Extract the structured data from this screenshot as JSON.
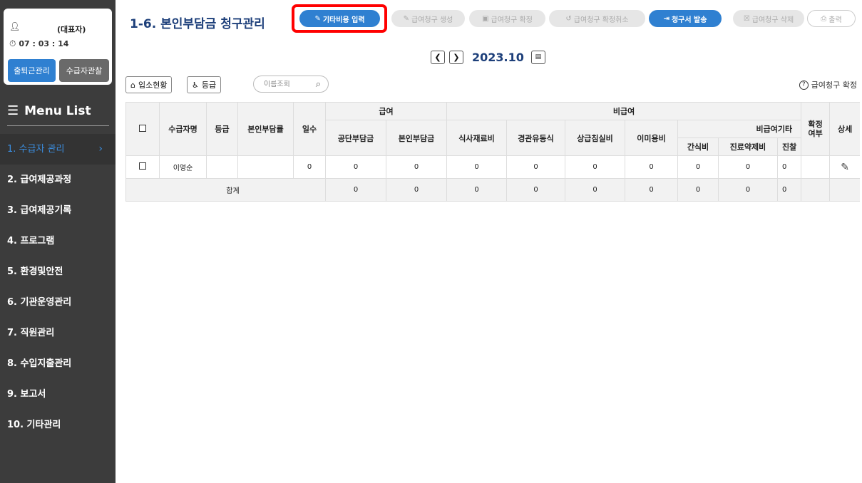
{
  "sidebar": {
    "user": {
      "role": "(대표자)",
      "time": "07 : 03 : 14"
    },
    "buttons": {
      "attendance": "출퇴근관리",
      "observation": "수급자관찰"
    },
    "menu_title": "Menu List",
    "items": [
      {
        "label": "1. 수급자 관리"
      },
      {
        "label": "2. 급여제공과정"
      },
      {
        "label": "3. 급여제공기록"
      },
      {
        "label": "4. 프로그램"
      },
      {
        "label": "5. 환경및안전"
      },
      {
        "label": "6. 기관운영관리"
      },
      {
        "label": "7. 직원관리"
      },
      {
        "label": "8. 수입지출관리"
      },
      {
        "label": "9. 보고서"
      },
      {
        "label": "10. 기타관리"
      }
    ]
  },
  "header": {
    "title": "1-6. 본인부담금 청구관리",
    "toolbar": {
      "other_cost": "기타비용 입력",
      "create": "급여청구 생성",
      "confirm": "급여청구 확정",
      "cancel_confirm": "급여청구 확정취소",
      "issue": "청구서 발송",
      "delete": "급여청구 삭제",
      "print": "출력"
    }
  },
  "period": "2023.10",
  "filters": {
    "admission": "입소현황",
    "grade": "등급",
    "search_placeholder": "이름조회"
  },
  "help": "급여청구 확정",
  "table": {
    "headers": {
      "name": "수급자명",
      "grade": "등급",
      "rate": "본인부담률",
      "days": "일수",
      "benefit": "급여",
      "non_benefit": "비급여",
      "public": "공단부담금",
      "self": "본인부담금",
      "meal": "식사재료비",
      "tube": "경관유동식",
      "upper_room": "상급침실비",
      "hair": "이미용비",
      "other": "비급여기타",
      "snack": "간식비",
      "medical": "진료약제비",
      "next": "진찰",
      "confirmed": "확정\n여부",
      "detail": "상세"
    },
    "rows": [
      {
        "name": "이영순",
        "grade": "",
        "rate": "",
        "days": "0",
        "public": "0",
        "self": "0",
        "meal": "0",
        "tube": "0",
        "upper_room": "0",
        "hair": "0",
        "snack": "0",
        "medical": "0",
        "next": "0",
        "confirmed": ""
      }
    ],
    "sum": {
      "label": "합계",
      "public": "0",
      "self": "0",
      "meal": "0",
      "tube": "0",
      "upper_room": "0",
      "hair": "0",
      "snack": "0",
      "medical": "0",
      "next": "0"
    }
  },
  "colors": {
    "primary": "#2f80d1",
    "sidebar": "#3c3c3c",
    "title": "#1d3f7a",
    "highlight": "#ff0000"
  }
}
